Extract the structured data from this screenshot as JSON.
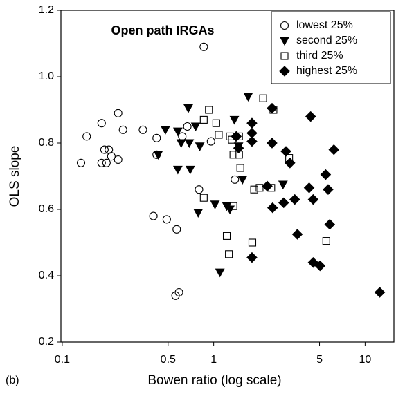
{
  "chart_data": {
    "type": "scatter",
    "title": "Open path IRGAs",
    "panel_label": "(b)",
    "x_label": "Bowen ratio (log scale)",
    "y_label": "OLS slope",
    "xscale": "log",
    "xlim": [
      0.098,
      15.5
    ],
    "ylim": [
      0.2,
      1.2
    ],
    "xticks": [
      0.1,
      0.5,
      1,
      5,
      10
    ],
    "yticks": [
      0.2,
      0.4,
      0.6,
      0.8,
      {
        "value": 1.0,
        "label": "1.0"
      },
      1.2
    ],
    "legend": "upper right",
    "series": [
      {
        "name": "lowest 25%",
        "marker": "circle",
        "filled": false,
        "color": "#000000",
        "x": [
          0.133,
          0.145,
          0.182,
          0.182,
          0.19,
          0.196,
          0.203,
          0.211,
          0.234,
          0.234,
          0.252,
          0.341,
          0.42,
          0.42,
          0.4,
          0.49,
          0.57,
          0.56,
          0.59,
          0.62,
          0.67,
          0.86,
          0.96,
          0.8,
          1.38
        ],
        "values": [
          0.74,
          0.82,
          0.86,
          0.74,
          0.78,
          0.74,
          0.78,
          0.76,
          0.75,
          0.89,
          0.84,
          0.84,
          0.815,
          0.765,
          0.58,
          0.57,
          0.54,
          0.34,
          0.35,
          0.82,
          0.85,
          1.09,
          0.805,
          0.66,
          0.69
        ]
      },
      {
        "name": "second 25%",
        "marker": "triangle",
        "filled": true,
        "color": "#000000",
        "x": [
          0.48,
          0.68,
          0.43,
          0.58,
          0.61,
          0.69,
          0.76,
          0.81,
          0.58,
          0.7,
          0.79,
          1.02,
          1.22,
          1.28,
          1.1,
          1.37,
          1.46,
          1.55,
          1.69,
          2.87
        ],
        "values": [
          0.84,
          0.905,
          0.765,
          0.835,
          0.8,
          0.8,
          0.85,
          0.79,
          0.72,
          0.72,
          0.59,
          0.615,
          0.61,
          0.6,
          0.41,
          0.87,
          0.79,
          0.69,
          0.94,
          0.675
        ]
      },
      {
        "name": "third 25%",
        "marker": "square",
        "filled": false,
        "color": "#000000",
        "x": [
          0.93,
          0.86,
          1.04,
          1.08,
          1.28,
          1.32,
          1.35,
          1.47,
          1.5,
          1.47,
          0.86,
          1.22,
          1.26,
          1.35,
          1.85,
          2.01,
          2.4,
          1.8,
          2.12,
          2.48,
          3.15,
          5.54
        ],
        "values": [
          0.9,
          0.87,
          0.86,
          0.825,
          0.82,
          0.81,
          0.765,
          0.765,
          0.725,
          0.82,
          0.635,
          0.52,
          0.465,
          0.61,
          0.66,
          0.665,
          0.665,
          0.5,
          0.935,
          0.9,
          0.755,
          0.505
        ]
      },
      {
        "name": "highest 25%",
        "marker": "diamond",
        "filled": true,
        "color": "#000000",
        "x": [
          1.41,
          1.46,
          1.79,
          1.79,
          1.79,
          2.26,
          2.43,
          2.43,
          2.45,
          2.9,
          3.0,
          3.19,
          3.43,
          3.57,
          4.27,
          4.37,
          4.54,
          4.54,
          5.04,
          5.49,
          5.7,
          5.84,
          6.22,
          1.79,
          12.5
        ],
        "values": [
          0.82,
          0.785,
          0.86,
          0.83,
          0.805,
          0.67,
          0.905,
          0.8,
          0.605,
          0.62,
          0.775,
          0.74,
          0.63,
          0.525,
          0.665,
          0.88,
          0.63,
          0.44,
          0.43,
          0.705,
          0.66,
          0.555,
          0.78,
          0.455,
          0.35
        ]
      }
    ]
  }
}
